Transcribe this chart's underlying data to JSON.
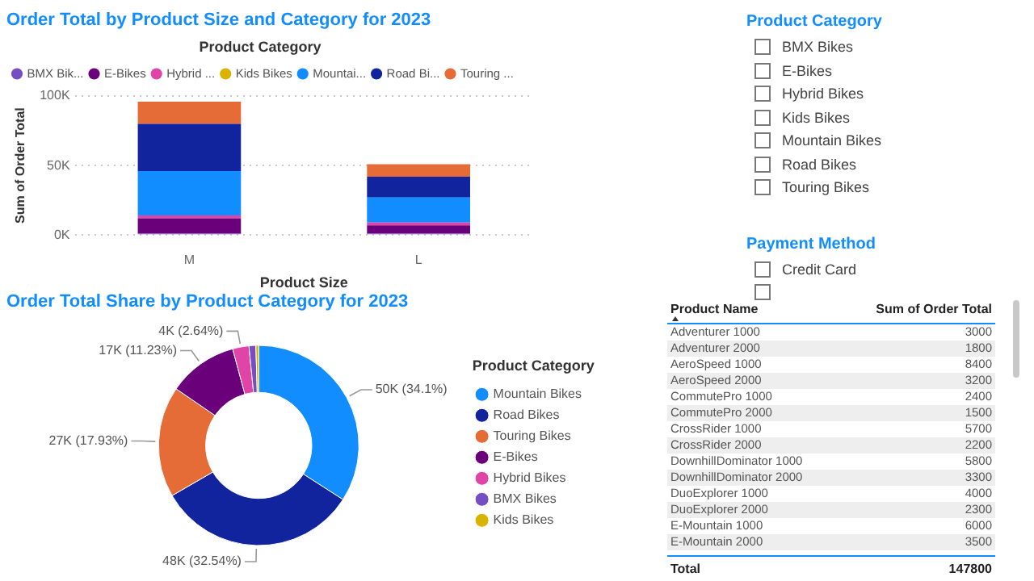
{
  "chart_data": [
    {
      "type": "bar",
      "title": "Order Total by Product Size and Category for 2023",
      "xlabel": "Product Size",
      "ylabel": "Sum of Order Total",
      "legend_title": "Product Category",
      "categories": [
        "M",
        "L"
      ],
      "stacked": true,
      "ylim": [
        0,
        100000
      ],
      "yticks": [
        {
          "value": 0,
          "label": "0K"
        },
        {
          "value": 50000,
          "label": "50K"
        },
        {
          "value": 100000,
          "label": "100K"
        }
      ],
      "grid": "y",
      "legend": "top left",
      "series": [
        {
          "name": "BMX Bik...",
          "color": "#744ec2",
          "values": [
            1000,
            1000
          ]
        },
        {
          "name": "E-Bikes",
          "color": "#6b007b",
          "values": [
            11000,
            6000
          ]
        },
        {
          "name": "Hybrid ...",
          "color": "#e044a7",
          "values": [
            2000,
            2000
          ]
        },
        {
          "name": "Kids Bikes",
          "color": "#d9b300",
          "values": [
            0,
            0
          ]
        },
        {
          "name": "Mountai...",
          "color": "#118dff",
          "values": [
            32000,
            18000
          ]
        },
        {
          "name": "Road Bi...",
          "color": "#12239e",
          "values": [
            34000,
            15000
          ]
        },
        {
          "name": "Touring ...",
          "color": "#e66c37",
          "values": [
            16000,
            9000
          ]
        }
      ]
    },
    {
      "type": "other",
      "title": "Product Category",
      "categories": [
        "BMX Bikes",
        "E-Bikes",
        "Hybrid Bikes",
        "Kids Bikes",
        "Mountain Bikes",
        "Road Bikes",
        "Touring Bikes"
      ]
    },
    {
      "type": "other",
      "title": "Payment Method",
      "categories": [
        "Credit Card",
        null
      ]
    },
    {
      "type": "donut",
      "title": "Order Total Share by Product Category for 2023",
      "legend_title": "Product Category",
      "legend": "right",
      "categories": [
        "Mountain Bikes",
        "Road Bikes",
        "Touring Bikes",
        "E-Bikes",
        "Hybrid Bikes",
        "BMX Bikes",
        "Kids Bikes"
      ],
      "values": [
        34.1,
        32.54,
        17.93,
        11.23,
        2.64,
        1.1,
        0.46
      ],
      "colors": [
        "#118dff",
        "#12239e",
        "#e66c37",
        "#6b007b",
        "#e044a7",
        "#744ec2",
        "#d9b300"
      ],
      "value_labels": [
        "50K (34.1%)",
        "48K (32.54%)",
        "27K (17.93%)",
        "17K (11.23%)",
        "4K (2.64%)",
        null,
        null
      ]
    },
    {
      "type": "other",
      "xlabel": "Product Name",
      "ylabel": "Sum of Order Total",
      "categories": [
        "Adventurer 1000",
        "Adventurer 2000",
        "AeroSpeed 1000",
        "AeroSpeed 2000",
        "CommutePro 1000",
        "CommutePro 2000",
        "CrossRider 1000",
        "CrossRider 2000",
        "DownhillDominator 1000",
        "DownhillDominator 2000",
        "DuoExplorer 1000",
        "DuoExplorer 2000",
        "E-Mountain 1000",
        "E-Mountain 2000"
      ],
      "values": [
        3000,
        1800,
        8400,
        3200,
        2400,
        1500,
        5700,
        2200,
        5800,
        3300,
        4000,
        2300,
        6000,
        3500
      ],
      "data_labels": true,
      "annotations": [
        "Total",
        "147800"
      ]
    }
  ]
}
